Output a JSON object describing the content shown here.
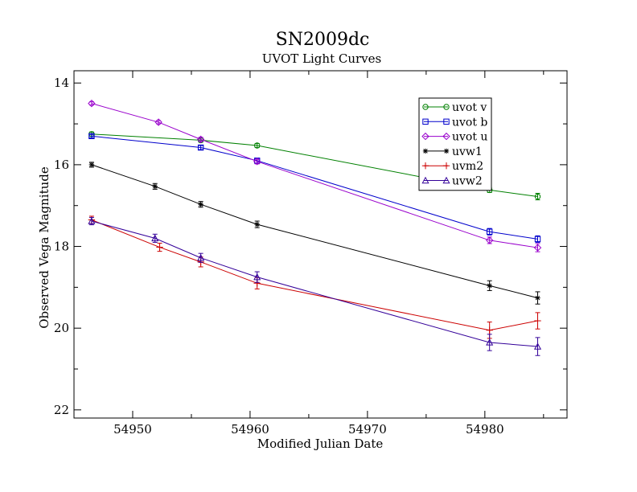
{
  "chart_data": {
    "type": "line",
    "title": "SN2009dc",
    "subtitle": "UVOT Light Curves",
    "xlabel": "Modified Julian Date",
    "ylabel": "Observed Vega Magnitude",
    "xlim": [
      54945,
      54987
    ],
    "ylim": [
      22.2,
      13.7
    ],
    "y_inverted": true,
    "x_ticks": [
      54950,
      54960,
      54970,
      54980
    ],
    "y_ticks": [
      14,
      16,
      18,
      20,
      22
    ],
    "grid": false,
    "legend": "top-right",
    "series": [
      {
        "name": "uvot v",
        "color": "#008000",
        "marker": "circle",
        "x": [
          54946.5,
          54955.8,
          54960.6,
          54980.4,
          54984.5
        ],
        "y": [
          15.25,
          15.4,
          15.53,
          16.62,
          16.78
        ],
        "err": [
          0.05,
          0.05,
          0.05,
          0.06,
          0.08
        ]
      },
      {
        "name": "uvot b",
        "color": "#0000cc",
        "marker": "square",
        "x": [
          54946.5,
          54955.8,
          54960.6,
          54980.4,
          54984.5
        ],
        "y": [
          15.3,
          15.58,
          15.9,
          17.64,
          17.82
        ],
        "err": [
          0.04,
          0.05,
          0.06,
          0.08,
          0.08
        ]
      },
      {
        "name": "uvot u",
        "color": "#9900cc",
        "marker": "diamond",
        "x": [
          54946.5,
          54952.2,
          54955.8,
          54960.6,
          54980.4,
          54984.5
        ],
        "y": [
          14.5,
          14.96,
          15.38,
          15.92,
          17.85,
          18.03
        ],
        "err": [
          0.04,
          0.04,
          0.05,
          0.06,
          0.08,
          0.1
        ]
      },
      {
        "name": "uvw1",
        "color": "#000000",
        "marker": "star",
        "x": [
          54946.5,
          54951.9,
          54955.8,
          54960.6,
          54980.4,
          54984.5
        ],
        "y": [
          16.0,
          16.53,
          16.97,
          17.46,
          18.96,
          19.26
        ],
        "err": [
          0.06,
          0.07,
          0.07,
          0.08,
          0.12,
          0.15
        ]
      },
      {
        "name": "uvm2",
        "color": "#cc0000",
        "marker": "plus",
        "x": [
          54946.5,
          54952.3,
          54955.8,
          54960.6,
          54980.4,
          54984.5
        ],
        "y": [
          17.35,
          18.02,
          18.38,
          18.9,
          20.05,
          19.82
        ],
        "err": [
          0.09,
          0.1,
          0.12,
          0.14,
          0.2,
          0.2
        ]
      },
      {
        "name": "uvw2",
        "color": "#330099",
        "marker": "triangle",
        "x": [
          54946.5,
          54951.9,
          54955.8,
          54960.6,
          54980.4,
          54984.5
        ],
        "y": [
          17.38,
          17.8,
          18.28,
          18.75,
          20.35,
          20.45
        ],
        "err": [
          0.09,
          0.1,
          0.11,
          0.13,
          0.2,
          0.22
        ]
      }
    ]
  }
}
